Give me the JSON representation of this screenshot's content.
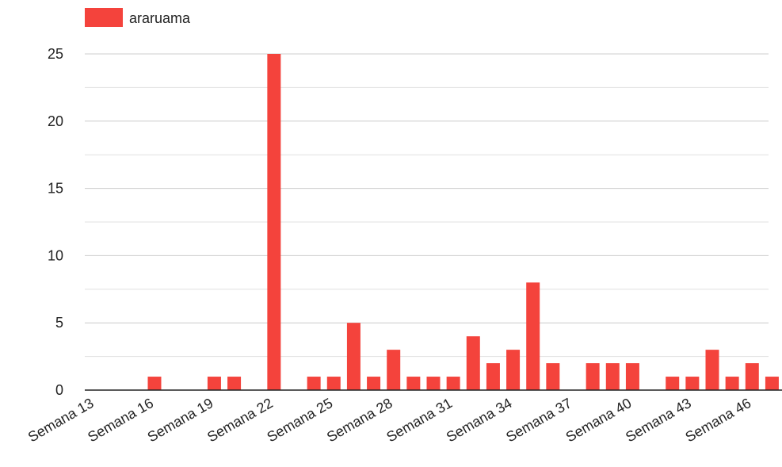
{
  "chart_data": {
    "type": "bar",
    "categories": [
      "Semana 13",
      null,
      null,
      "Semana 16",
      null,
      null,
      "Semana 19",
      null,
      null,
      "Semana 22",
      null,
      null,
      "Semana 25",
      null,
      null,
      "Semana 28",
      null,
      null,
      "Semana 31",
      null,
      null,
      "Semana 34",
      null,
      null,
      "Semana 37",
      null,
      null,
      "Semana 40",
      null,
      null,
      "Semana 43",
      null,
      null,
      "Semana 46",
      null
    ],
    "series": [
      {
        "name": "araruama",
        "color": "#f4433c",
        "values": [
          0,
          0,
          0,
          1,
          0,
          0,
          1,
          1,
          0,
          25,
          0,
          1,
          1,
          5,
          1,
          3,
          1,
          1,
          1,
          4,
          2,
          3,
          8,
          2,
          0,
          2,
          2,
          2,
          0,
          1,
          1,
          3,
          1,
          2,
          1
        ]
      }
    ],
    "ylim": [
      0,
      25
    ],
    "yticks": [
      0,
      5,
      10,
      15,
      20,
      25
    ],
    "grid": true,
    "legend": "top-left"
  }
}
